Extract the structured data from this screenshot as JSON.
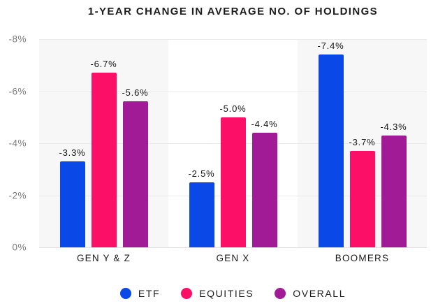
{
  "chart_data": {
    "type": "bar",
    "title": "1-YEAR CHANGE IN AVERAGE NO. OF HOLDINGS",
    "categories": [
      "GEN Y & Z",
      "GEN X",
      "BOOMERS"
    ],
    "series": [
      {
        "name": "ETF",
        "color": "#0a49e8",
        "values": [
          -3.3,
          -2.5,
          -7.4
        ],
        "labels": [
          "-3.3%",
          "-2.5%",
          "-7.4%"
        ]
      },
      {
        "name": "EQUITIES",
        "color": "#fb0f67",
        "values": [
          -6.7,
          -5.0,
          -3.7
        ],
        "labels": [
          "-6.7%",
          "-5.0%",
          "-3.7%"
        ]
      },
      {
        "name": "OVERALL",
        "color": "#a21b96",
        "values": [
          -5.6,
          -4.4,
          -4.3
        ],
        "labels": [
          "-5.6%",
          "-4.4%",
          "-4.3%"
        ]
      }
    ],
    "y_axis": {
      "ticks": [
        "-8%",
        "-6%",
        "-4%",
        "-2%",
        "0%"
      ],
      "min": 0,
      "max": -8,
      "inverted": true
    },
    "legend": {
      "position": "bottom",
      "entries": [
        "ETF",
        "EQUITIES",
        "OVERALL"
      ]
    },
    "band_background_colors": [
      "#f7f7f7",
      "#ffffff",
      "#f7f7f7"
    ],
    "grid": true
  }
}
